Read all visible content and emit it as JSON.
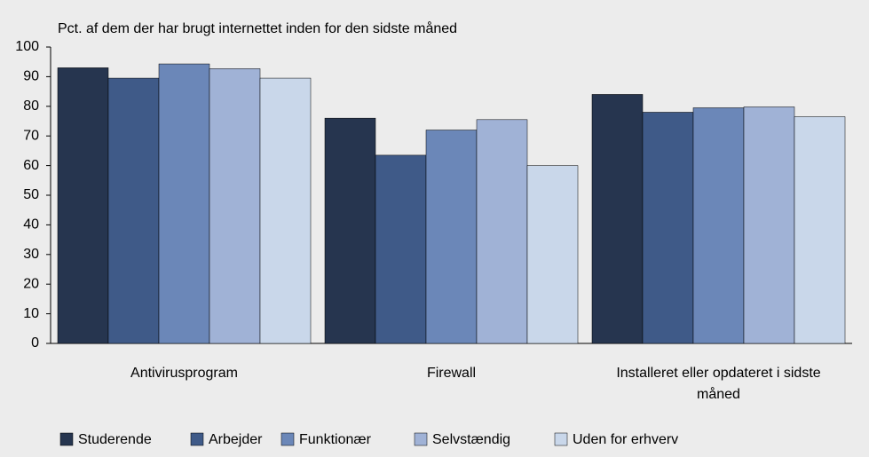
{
  "chart_data": {
    "type": "bar",
    "title": "Pct. af dem der har brugt internettet inden for den sidste måned",
    "categories": [
      "Antivirusprogram",
      "Firewall",
      "Installeret eller opdateret i sidste måned"
    ],
    "series": [
      {
        "name": "Studerende",
        "color": "#26354f",
        "values": [
          93,
          76,
          84
        ]
      },
      {
        "name": "Arbejder",
        "color": "#3f5a88",
        "values": [
          89.5,
          63.5,
          78
        ]
      },
      {
        "name": "Funktionær",
        "color": "#6b87b8",
        "values": [
          94.3,
          72,
          79.5
        ]
      },
      {
        "name": "Selvstændig",
        "color": "#a0b2d6",
        "values": [
          92.7,
          75.5,
          79.8
        ]
      },
      {
        "name": "Uden for erhverv",
        "color": "#c9d7ea",
        "values": [
          89.5,
          60,
          76.5
        ]
      }
    ],
    "ylim": [
      0,
      100
    ],
    "yticks": [
      0,
      10,
      20,
      30,
      40,
      50,
      60,
      70,
      80,
      90,
      100
    ],
    "legend": "bottom"
  }
}
